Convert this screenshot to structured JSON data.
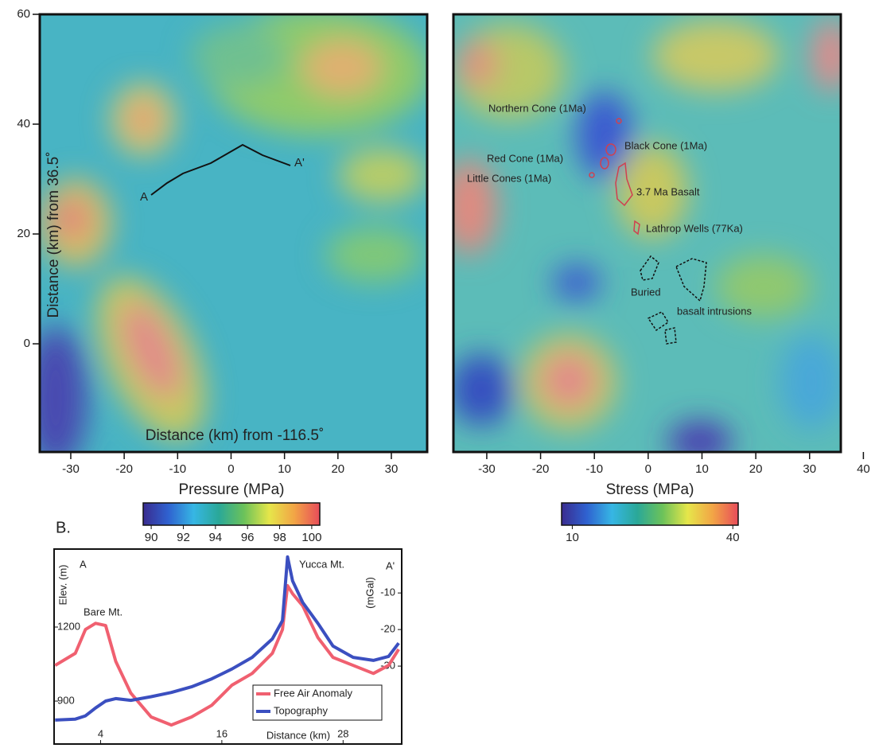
{
  "chart_data": [
    {
      "type": "map",
      "xlabel": "Distance (km) from -116.5˚",
      "ylabel": "Distance (km) from 36.5˚",
      "xlim": [
        -35.8,
        36.7
      ],
      "xticks": [
        -30,
        -20,
        -10,
        0,
        10,
        20,
        30
      ],
      "ylim": [
        -19.7,
        60
      ],
      "yticks": [
        0,
        20,
        40,
        60
      ],
      "annotations": [
        "A",
        "A'"
      ],
      "colorbar": {
        "label": "Pressure (MPa)",
        "lim": [
          89.5,
          100.5
        ],
        "ticks": [
          90,
          92,
          94,
          96,
          98,
          100
        ],
        "colors": [
          "#3a2c90",
          "#2f62d0",
          "#36b6e4",
          "#2aa898",
          "#6cc25a",
          "#e6e64a",
          "#f2a446",
          "#e84c5a"
        ]
      }
    },
    {
      "type": "map",
      "xlim": [
        -36.2,
        35.8
      ],
      "xticks": [
        -30,
        -20,
        -10,
        0,
        10,
        20,
        30,
        40
      ],
      "ylim": [
        -19.7,
        60
      ],
      "annotations": [
        "Northern Cone (1Ma)",
        "Black Cone (1Ma)",
        "Red Cone (1Ma)",
        "Little Cones (1Ma)",
        "3.7 Ma Basalt",
        "Lathrop Wells (77Ka)",
        "Buried",
        "basalt intrusions"
      ],
      "colorbar": {
        "label": "Stress (MPa)",
        "lim": [
          8,
          41
        ],
        "ticks": [
          10,
          40
        ],
        "colors": [
          "#3a2c90",
          "#2f62d0",
          "#36b6e4",
          "#2aa898",
          "#6cc25a",
          "#e6e64a",
          "#f2a446",
          "#e84c5a"
        ]
      }
    },
    {
      "type": "line",
      "title": "B.",
      "xlabel": "Distance (km)",
      "ylabel": "Elev. (m)",
      "y2label": "(mGal)",
      "x": [
        -0.5,
        1.5,
        2.5,
        3.5,
        4.5,
        5.5,
        7,
        9,
        11,
        13,
        15,
        17,
        19,
        21,
        22,
        22.5,
        23,
        24,
        25.5,
        27,
        29,
        31,
        32.5,
        33.5
      ],
      "xlim": [
        -0.6,
        33.8
      ],
      "xticks": [
        4,
        16,
        28
      ],
      "ylim": [
        726,
        1516
      ],
      "yticks": [
        900,
        1200
      ],
      "y2lim": [
        -51.3,
        2
      ],
      "y2ticks": [
        -10,
        -20,
        -30
      ],
      "annotations": [
        "A",
        "A'",
        "Bare Mt.",
        "Yucca Mt."
      ],
      "legend": "lower right",
      "series": [
        {
          "name": "Free Air Anomaly",
          "color": "#f06070",
          "axis": "y2",
          "values": [
            -29.8,
            -26.5,
            -20,
            -18.3,
            -18.9,
            -28.7,
            -37.4,
            -43.9,
            -46.1,
            -43.9,
            -40.7,
            -35.2,
            -32,
            -26.5,
            -20,
            -8,
            -10.2,
            -13.5,
            -22.2,
            -27.6,
            -29.8,
            -32,
            -29.8,
            -25.4
          ]
        },
        {
          "name": "Topography",
          "color": "#3b4fc0",
          "values": [
            823,
            827,
            840,
            872,
            900,
            910,
            903,
            918,
            935,
            958,
            990,
            1030,
            1077,
            1152,
            1226,
            1484,
            1387,
            1300,
            1215,
            1123,
            1077,
            1065,
            1081,
            1135
          ]
        }
      ]
    }
  ]
}
